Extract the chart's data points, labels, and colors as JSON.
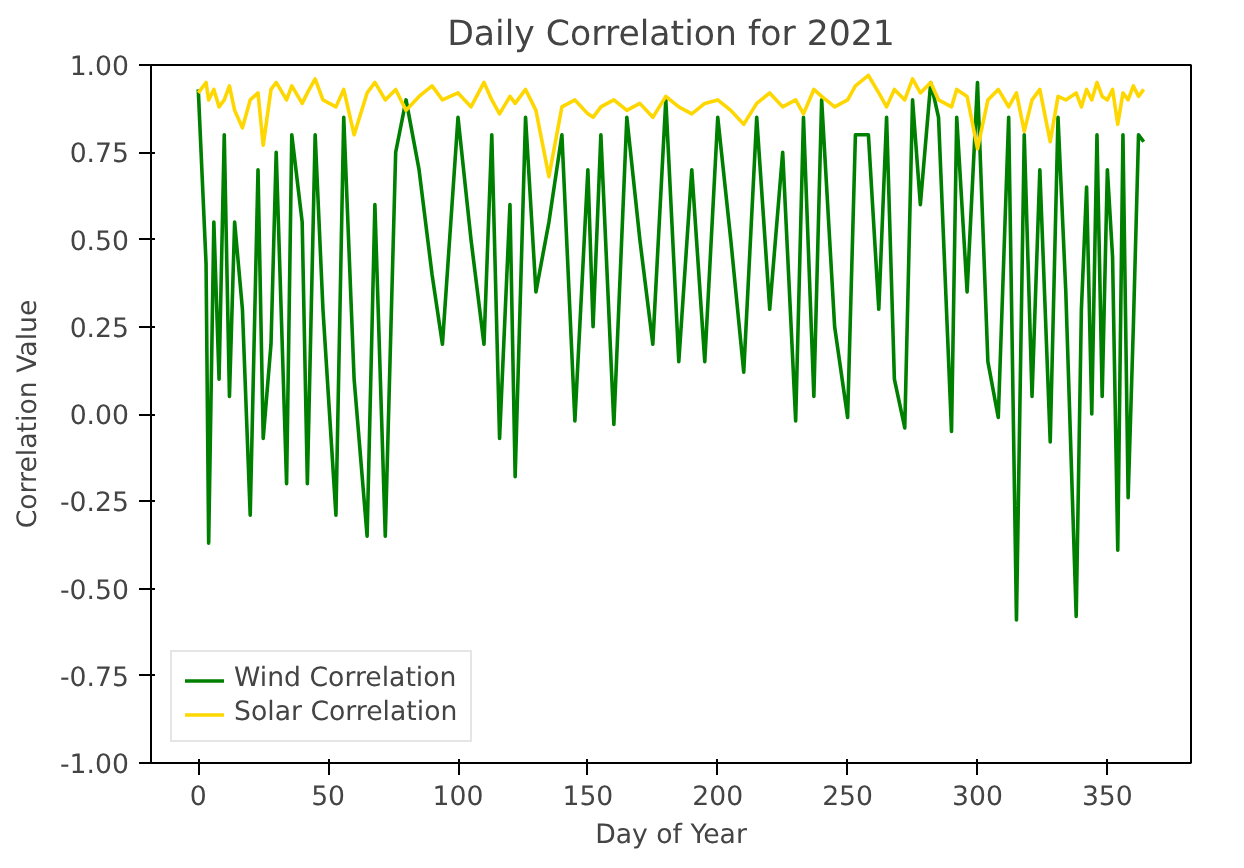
{
  "chart_data": {
    "type": "line",
    "title": "Daily Correlation for 2021",
    "xlabel": "Day of Year",
    "ylabel": "Correlation Value",
    "x": [
      0,
      3,
      4,
      6,
      8,
      10,
      12,
      14,
      17,
      20,
      23,
      25,
      28,
      30,
      34,
      36,
      40,
      42,
      45,
      48,
      53,
      56,
      60,
      65,
      68,
      72,
      76,
      80,
      85,
      90,
      94,
      100,
      105,
      110,
      113,
      116,
      120,
      122,
      126,
      130,
      135,
      140,
      145,
      150,
      152,
      155,
      160,
      165,
      170,
      175,
      180,
      185,
      190,
      195,
      200,
      205,
      210,
      215,
      220,
      225,
      230,
      233,
      237,
      240,
      245,
      250,
      253,
      258,
      262,
      265,
      268,
      272,
      275,
      278,
      282,
      285,
      290,
      292,
      296,
      300,
      304,
      308,
      312,
      315,
      318,
      321,
      324,
      328,
      331,
      334,
      338,
      340,
      342,
      344,
      346,
      348,
      350,
      352,
      354,
      356,
      358,
      360,
      362,
      364
    ],
    "series": [
      {
        "name": "Wind Correlation",
        "color": "#008000",
        "values": [
          0.93,
          0.43,
          -0.37,
          0.55,
          0.1,
          0.8,
          0.05,
          0.55,
          0.3,
          -0.29,
          0.7,
          -0.07,
          0.2,
          0.75,
          -0.2,
          0.8,
          0.55,
          -0.2,
          0.8,
          0.3,
          -0.29,
          0.85,
          0.1,
          -0.35,
          0.6,
          -0.35,
          0.75,
          0.9,
          0.7,
          0.4,
          0.2,
          0.85,
          0.5,
          0.2,
          0.8,
          -0.07,
          0.6,
          -0.18,
          0.85,
          0.35,
          0.55,
          0.8,
          -0.02,
          0.7,
          0.25,
          0.8,
          -0.03,
          0.85,
          0.5,
          0.2,
          0.9,
          0.15,
          0.7,
          0.15,
          0.85,
          0.5,
          0.12,
          0.85,
          0.3,
          0.75,
          -0.02,
          0.85,
          0.05,
          0.9,
          0.25,
          -0.01,
          0.8,
          0.8,
          0.3,
          0.85,
          0.1,
          -0.04,
          0.9,
          0.6,
          0.95,
          0.85,
          -0.05,
          0.85,
          0.35,
          0.95,
          0.15,
          -0.01,
          0.85,
          -0.59,
          0.8,
          0.05,
          0.7,
          -0.08,
          0.85,
          0.35,
          -0.58,
          0.3,
          0.65,
          0.0,
          0.8,
          0.05,
          0.7,
          0.45,
          -0.39,
          0.8,
          -0.24,
          0.25,
          0.8,
          0.78
        ]
      },
      {
        "name": "Solar Correlation",
        "color": "#ffd700",
        "values": [
          0.92,
          0.95,
          0.9,
          0.93,
          0.88,
          0.9,
          0.94,
          0.87,
          0.82,
          0.9,
          0.92,
          0.77,
          0.93,
          0.95,
          0.9,
          0.94,
          0.89,
          0.92,
          0.96,
          0.9,
          0.88,
          0.93,
          0.8,
          0.92,
          0.95,
          0.9,
          0.93,
          0.87,
          0.91,
          0.94,
          0.9,
          0.92,
          0.88,
          0.95,
          0.9,
          0.86,
          0.91,
          0.89,
          0.93,
          0.87,
          0.68,
          0.88,
          0.9,
          0.86,
          0.85,
          0.88,
          0.9,
          0.87,
          0.89,
          0.85,
          0.91,
          0.88,
          0.86,
          0.89,
          0.9,
          0.87,
          0.83,
          0.89,
          0.92,
          0.88,
          0.9,
          0.86,
          0.93,
          0.91,
          0.88,
          0.9,
          0.94,
          0.97,
          0.92,
          0.88,
          0.93,
          0.9,
          0.96,
          0.92,
          0.95,
          0.9,
          0.88,
          0.93,
          0.91,
          0.76,
          0.9,
          0.93,
          0.88,
          0.92,
          0.81,
          0.9,
          0.93,
          0.78,
          0.91,
          0.9,
          0.92,
          0.88,
          0.93,
          0.9,
          0.95,
          0.91,
          0.9,
          0.93,
          0.83,
          0.92,
          0.9,
          0.94,
          0.91,
          0.93
        ]
      }
    ],
    "xlim": [
      -18.2,
      382.2
    ],
    "ylim": [
      -1,
      1
    ],
    "xticks": [
      0,
      50,
      100,
      150,
      200,
      250,
      300,
      350
    ],
    "yticks": [
      {
        "value": -1,
        "label": "-1.00"
      },
      {
        "value": -0.75,
        "label": "-0.75"
      },
      {
        "value": -0.5,
        "label": "-0.50"
      },
      {
        "value": -0.25,
        "label": "-0.25"
      },
      {
        "value": 0,
        "label": "0.00"
      },
      {
        "value": 0.25,
        "label": "0.25"
      },
      {
        "value": 0.5,
        "label": "0.50"
      },
      {
        "value": 0.75,
        "label": "0.75"
      },
      {
        "value": 1,
        "label": "1.00"
      }
    ],
    "legend": "bottom left",
    "grid": false
  }
}
